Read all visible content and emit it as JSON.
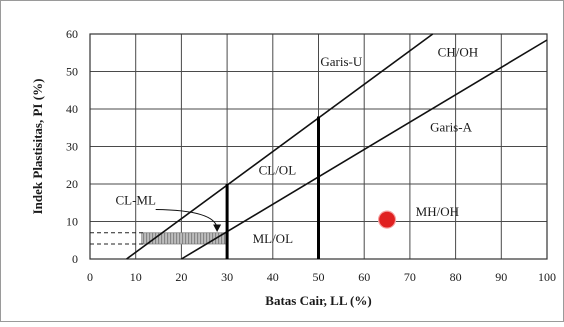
{
  "chart_data": {
    "type": "line",
    "xlabel": "Batas Cair, LL (%)",
    "ylabel": "Indek Plastisitas, PI (%)",
    "xlim": [
      0,
      100
    ],
    "ylim": [
      0,
      60
    ],
    "x_ticks": [
      0,
      10,
      20,
      30,
      40,
      50,
      60,
      70,
      80,
      90,
      100
    ],
    "y_ticks": [
      0,
      10,
      20,
      30,
      40,
      50,
      60
    ],
    "grid": true,
    "series": [
      {
        "name": "Garis-U",
        "points": [
          [
            8,
            0
          ],
          [
            75,
            60
          ]
        ]
      },
      {
        "name": "Garis-A",
        "points": [
          [
            20,
            0
          ],
          [
            100,
            58.4
          ]
        ]
      }
    ],
    "vertical_lines": [
      {
        "x": 30,
        "y_from": 0,
        "y_to": 20
      },
      {
        "x": 50,
        "y_from": 0,
        "y_to": 38
      }
    ],
    "hatched_zone": {
      "x_from": 10,
      "x_to": 30,
      "y_from": 4,
      "y_to": 7
    },
    "dashed_levels": [
      4,
      7
    ],
    "marker_point": {
      "x": 65,
      "y": 10.5,
      "color": "#e02020"
    },
    "annotations": [
      {
        "text": "Garis-U",
        "x": 55,
        "y": 51.5
      },
      {
        "text": "CH/OH",
        "x": 80.5,
        "y": 54
      },
      {
        "text": "Garis-A",
        "x": 79,
        "y": 34
      },
      {
        "text": "CL/OL",
        "x": 41,
        "y": 22.5
      },
      {
        "text": "CL-ML",
        "x": 10,
        "y": 14.5
      },
      {
        "text": "MH/OH",
        "x": 76,
        "y": 11.5
      },
      {
        "text": "ML/OL",
        "x": 40,
        "y": 4.3
      }
    ]
  }
}
